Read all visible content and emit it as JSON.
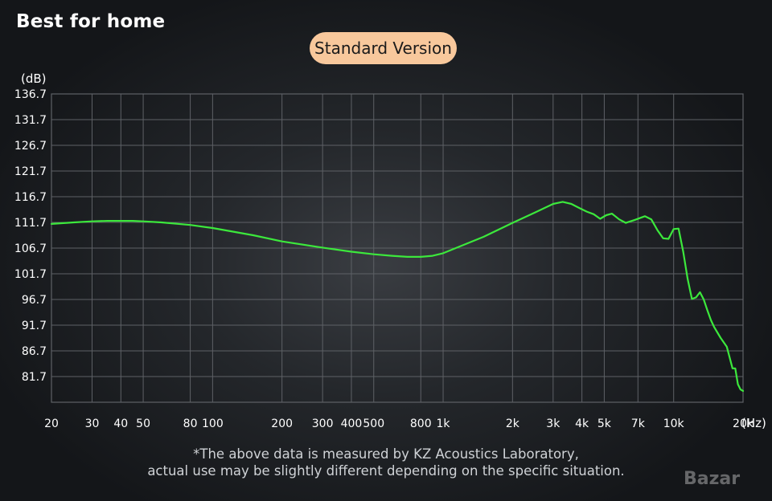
{
  "header": {
    "title": "Best for home"
  },
  "badge": {
    "label": "Standard Version",
    "color": "#f8c89c"
  },
  "chart_data": {
    "type": "line",
    "ylabel": "(dB)",
    "xlabel": "(Hz)",
    "x_scale": "log",
    "xlim": [
      20,
      20000
    ],
    "ylim": [
      76.7,
      136.7
    ],
    "yticks": [
      136.7,
      131.7,
      126.7,
      121.7,
      116.7,
      111.7,
      106.7,
      101.7,
      96.7,
      91.7,
      86.7,
      81.7
    ],
    "ytick_labels": [
      "136.7",
      "131.7",
      "126.7",
      "121.7",
      "116.7",
      "111.7",
      "106.7",
      "101.7",
      "96.7",
      "91.7",
      "86.7",
      "81.7"
    ],
    "xticks": [
      20,
      30,
      40,
      50,
      80,
      100,
      200,
      300,
      400,
      500,
      800,
      1000,
      2000,
      3000,
      4000,
      5000,
      7000,
      10000,
      20000
    ],
    "xtick_labels": [
      "20",
      "30",
      "40",
      "50",
      "80",
      "100",
      "200",
      "300",
      "400",
      "500",
      "800",
      "1k",
      "2k",
      "3k",
      "4k",
      "5k",
      "7k",
      "10k",
      "20k"
    ],
    "grid": true,
    "line_color": "#3ce83c",
    "series": [
      {
        "x": [
          20,
          25,
          30,
          35,
          40,
          45,
          50,
          60,
          80,
          100,
          150,
          200,
          300,
          400,
          500,
          600,
          700,
          800,
          900,
          1000,
          1500,
          2000,
          2500,
          3000,
          3300,
          3600,
          3900,
          4200,
          4500,
          4800,
          5100,
          5400,
          5800,
          6200,
          6800,
          7500,
          8000,
          8500,
          9000,
          9500,
          10000,
          10500,
          11000,
          11500,
          12000,
          12500,
          13000,
          13500,
          14000,
          14500,
          15000,
          16000,
          17000,
          18000,
          18500,
          19000,
          19500,
          20000
        ],
        "y": [
          111.4,
          111.7,
          111.9,
          112.0,
          112.0,
          112.0,
          111.9,
          111.7,
          111.2,
          110.6,
          109.2,
          108.0,
          106.8,
          106.0,
          105.5,
          105.2,
          105.0,
          105.0,
          105.2,
          105.7,
          108.9,
          111.6,
          113.6,
          115.3,
          115.7,
          115.3,
          114.5,
          113.8,
          113.3,
          112.4,
          113.1,
          113.4,
          112.3,
          111.6,
          112.2,
          112.9,
          112.3,
          110.2,
          108.6,
          108.5,
          110.4,
          110.5,
          106.0,
          100.7,
          96.8,
          97.1,
          98.1,
          96.7,
          94.6,
          92.7,
          91.3,
          89.2,
          87.5,
          83.3,
          83.3,
          80.2,
          79.2,
          78.9
        ]
      }
    ]
  },
  "footnote": {
    "line1": "*The above data is measured by KZ Acoustics Laboratory,",
    "line2": "actual use may be slightly different depending on the specific situation."
  },
  "watermark": {
    "text": "Bazar"
  }
}
